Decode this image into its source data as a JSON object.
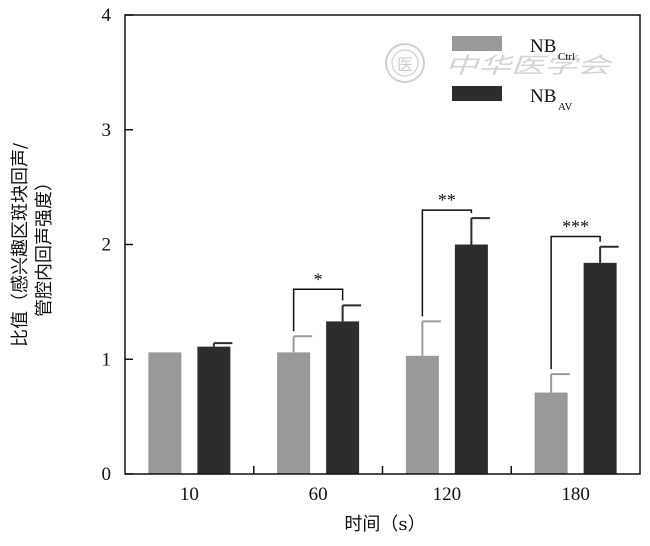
{
  "chart_data": {
    "type": "bar",
    "title": "",
    "xlabel": "时间（s）",
    "ylabel_lines": [
      "比值（感兴趣区斑块回声/",
      "管腔内回声强度）"
    ],
    "categories": [
      "10",
      "60",
      "120",
      "180"
    ],
    "ylim": [
      0,
      4
    ],
    "yticks": [
      "0",
      "1",
      "2",
      "3",
      "4"
    ],
    "legend_position": "top-right",
    "series": [
      {
        "name_main": "NB",
        "name_sub": "Ctrl",
        "color": "#999999",
        "values": [
          1.06,
          1.06,
          1.03,
          0.71
        ],
        "errors": [
          0.0,
          0.14,
          0.3,
          0.16
        ]
      },
      {
        "name_main": "NB",
        "name_sub": "AV",
        "color": "#2d2d2d",
        "values": [
          1.11,
          1.33,
          2.0,
          1.84
        ],
        "errors": [
          0.03,
          0.14,
          0.23,
          0.14
        ]
      }
    ],
    "significance": [
      {
        "category_index": 1,
        "label": "*",
        "y": 1.61
      },
      {
        "category_index": 2,
        "label": "**",
        "y": 2.3
      },
      {
        "category_index": 3,
        "label": "***",
        "y": 2.07
      }
    ]
  },
  "watermark": {
    "text": "中华医学会",
    "seal_char": "医"
  }
}
